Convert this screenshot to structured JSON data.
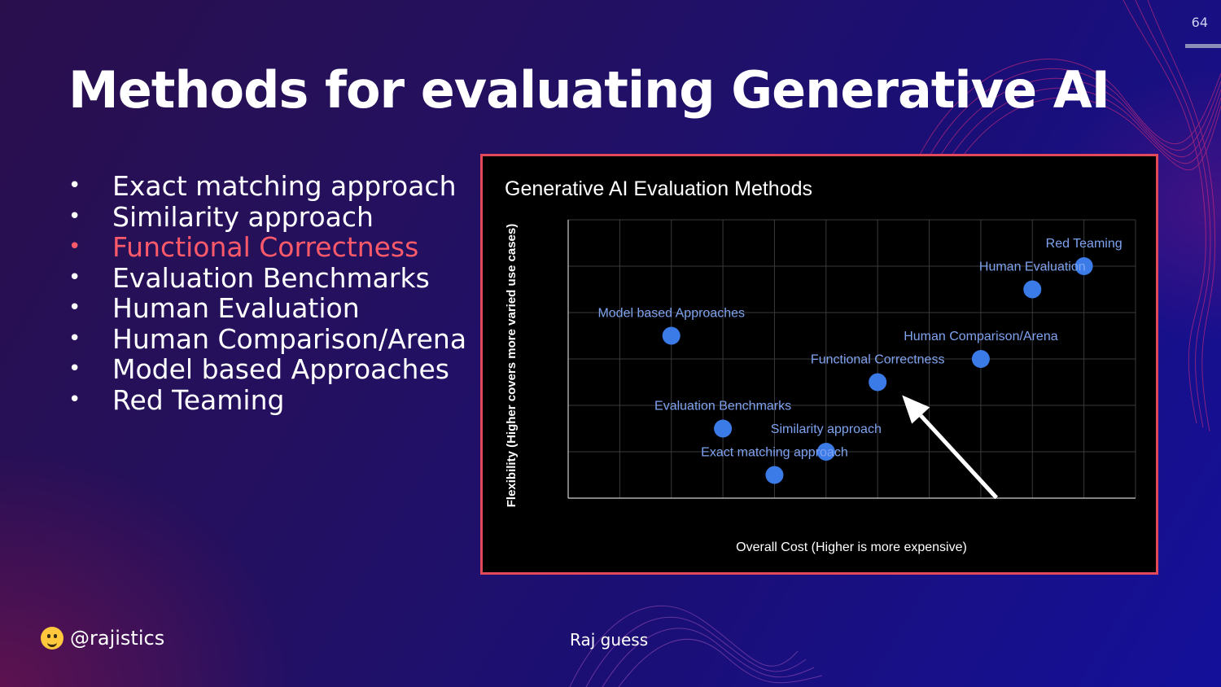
{
  "slide": {
    "number": "64",
    "title": "Methods for evaluating Generative AI",
    "bullets": [
      {
        "text": "Exact matching approach",
        "highlight": false
      },
      {
        "text": "Similarity approach",
        "highlight": false
      },
      {
        "text": "Functional Correctness",
        "highlight": true
      },
      {
        "text": "Evaluation Benchmarks",
        "highlight": false
      },
      {
        "text": "Human Evaluation",
        "highlight": false
      },
      {
        "text": "Human Comparison/Arena",
        "highlight": false
      },
      {
        "text": "Model based Approaches",
        "highlight": false
      },
      {
        "text": "Red Teaming",
        "highlight": false
      }
    ],
    "handle": "@rajistics",
    "handle_icon": "hugging-face-icon",
    "footer_note": "Raj guess",
    "colors": {
      "highlight": "#ff5a6a",
      "point": "#3b7be8",
      "frame_border": "#e24a5a"
    }
  },
  "chart_data": {
    "type": "scatter",
    "title": "Generative AI Evaluation Methods",
    "xlabel": "Overall Cost (Higher is more expensive)",
    "ylabel": "Flexibility (Higher covers more varied use cases)",
    "xlim": [
      0,
      11
    ],
    "ylim": [
      0,
      6
    ],
    "grid": true,
    "x_ticks_shown": false,
    "y_ticks_shown": false,
    "points": [
      {
        "label": "Exact matching approach",
        "x": 4.0,
        "y": 0.5
      },
      {
        "label": "Similarity approach",
        "x": 5.0,
        "y": 1.0
      },
      {
        "label": "Evaluation Benchmarks",
        "x": 3.0,
        "y": 1.5
      },
      {
        "label": "Functional Correctness",
        "x": 6.0,
        "y": 2.5
      },
      {
        "label": "Human Comparison/Arena",
        "x": 8.0,
        "y": 3.0
      },
      {
        "label": "Model based Approaches",
        "x": 2.0,
        "y": 3.5
      },
      {
        "label": "Human Evaluation",
        "x": 9.0,
        "y": 4.5
      },
      {
        "label": "Red Teaming",
        "x": 10.0,
        "y": 5.0
      }
    ],
    "annotations": [
      {
        "type": "arrow",
        "color": "#ffffff",
        "points_to": "Functional Correctness"
      }
    ]
  }
}
